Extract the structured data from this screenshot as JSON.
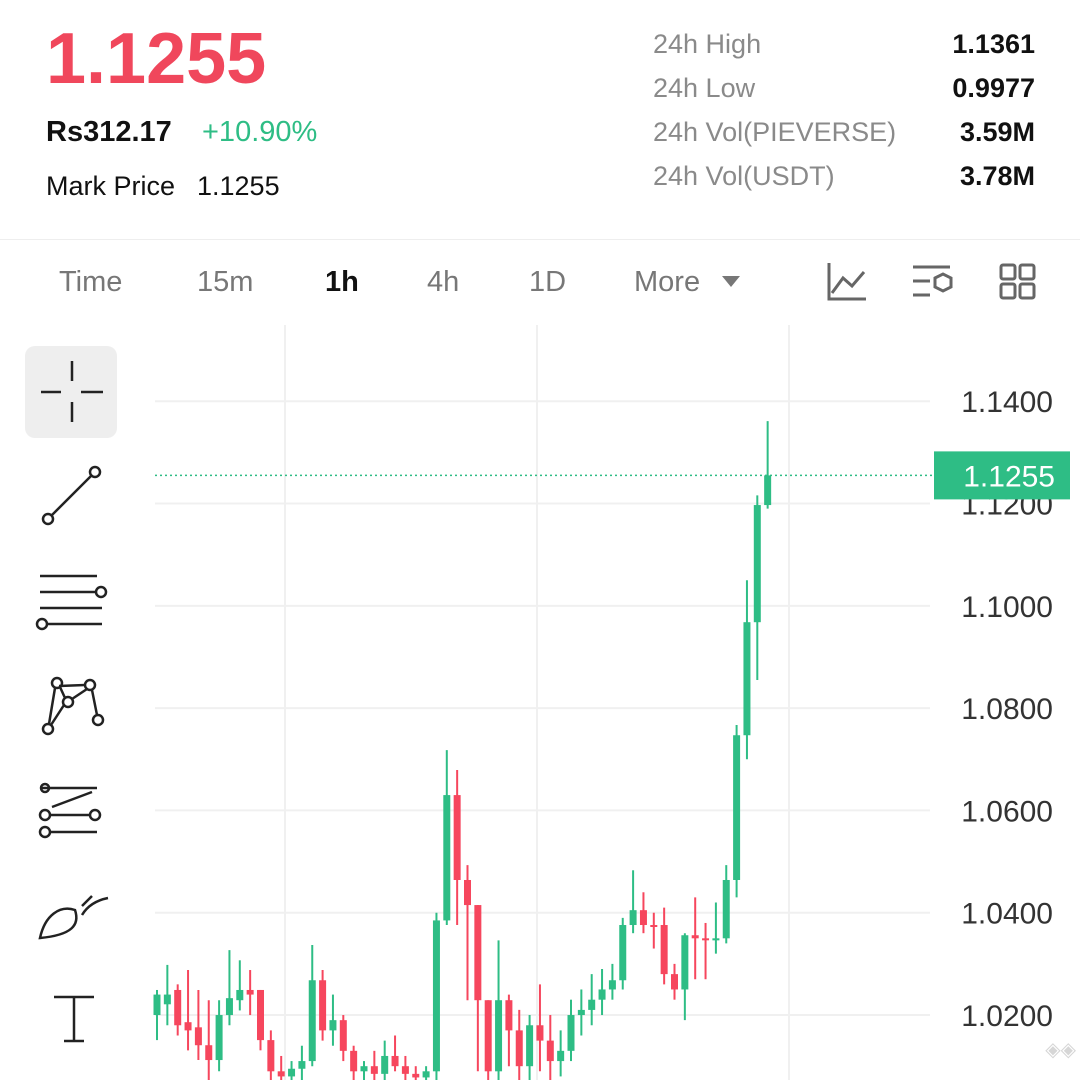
{
  "header": {
    "price": "1.1255",
    "fiat": "Rs312.17",
    "change": "+10.90%",
    "mark_label": "Mark Price",
    "mark_value": "1.1255"
  },
  "stats": [
    {
      "label": "24h High",
      "value": "1.1361"
    },
    {
      "label": "24h Low",
      "value": "0.9977"
    },
    {
      "label": "24h Vol(PIEVERSE)",
      "value": "3.59M"
    },
    {
      "label": "24h Vol(USDT)",
      "value": "3.78M"
    }
  ],
  "tabs": [
    "Time",
    "15m",
    "1h",
    "4h",
    "1D",
    "More"
  ],
  "active_tab": 2,
  "chart_data": {
    "type": "candlestick",
    "up_color": "#2ebd85",
    "down_color": "#f6465d",
    "ylim": [
      1.0073,
      1.1549
    ],
    "yticks": [
      {
        "value": 1.14,
        "label": "1.1400"
      },
      {
        "value": 1.12,
        "label": "1.1200"
      },
      {
        "value": 1.1,
        "label": "1.1000"
      },
      {
        "value": 1.08,
        "label": "1.0800"
      },
      {
        "value": 1.06,
        "label": "1.0600"
      },
      {
        "value": 1.04,
        "label": "1.0400"
      },
      {
        "value": 1.02,
        "label": "1.0200"
      }
    ],
    "grid": true,
    "price_line": {
      "value": 1.1255,
      "label": "1.1255"
    },
    "candles": [
      {
        "o": 1.02,
        "h": 1.0249,
        "l": 1.0151,
        "c": 1.024
      },
      {
        "o": 1.0221,
        "h": 1.0298,
        "l": 1.018,
        "c": 1.024
      },
      {
        "o": 1.0249,
        "h": 1.026,
        "l": 1.016,
        "c": 1.018
      },
      {
        "o": 1.0186,
        "h": 1.0288,
        "l": 1.0131,
        "c": 1.017
      },
      {
        "o": 1.0176,
        "h": 1.0249,
        "l": 1.0112,
        "c": 1.0141
      },
      {
        "o": 1.0141,
        "h": 1.0229,
        "l": 1.0073,
        "c": 1.0112
      },
      {
        "o": 1.0112,
        "h": 1.0229,
        "l": 1.009,
        "c": 1.02
      },
      {
        "o": 1.02,
        "h": 1.0327,
        "l": 1.018,
        "c": 1.0233
      },
      {
        "o": 1.0229,
        "h": 1.0307,
        "l": 1.0209,
        "c": 1.0249
      },
      {
        "o": 1.0249,
        "h": 1.0288,
        "l": 1.02,
        "c": 1.024
      },
      {
        "o": 1.0249,
        "h": 1.0249,
        "l": 1.0131,
        "c": 1.0151
      },
      {
        "o": 1.0151,
        "h": 1.017,
        "l": 1.0073,
        "c": 1.009
      },
      {
        "o": 1.009,
        "h": 1.012,
        "l": 1.0073,
        "c": 1.008
      },
      {
        "o": 1.008,
        "h": 1.011,
        "l": 1.0073,
        "c": 1.0095
      },
      {
        "o": 1.0095,
        "h": 1.014,
        "l": 1.0073,
        "c": 1.011
      },
      {
        "o": 1.011,
        "h": 1.0337,
        "l": 1.01,
        "c": 1.0268
      },
      {
        "o": 1.0268,
        "h": 1.0288,
        "l": 1.015,
        "c": 1.017
      },
      {
        "o": 1.017,
        "h": 1.024,
        "l": 1.014,
        "c": 1.019
      },
      {
        "o": 1.019,
        "h": 1.02,
        "l": 1.011,
        "c": 1.013
      },
      {
        "o": 1.013,
        "h": 1.014,
        "l": 1.0073,
        "c": 1.009
      },
      {
        "o": 1.009,
        "h": 1.011,
        "l": 1.0073,
        "c": 1.01
      },
      {
        "o": 1.01,
        "h": 1.013,
        "l": 1.0073,
        "c": 1.0085
      },
      {
        "o": 1.0085,
        "h": 1.015,
        "l": 1.0073,
        "c": 1.012
      },
      {
        "o": 1.012,
        "h": 1.016,
        "l": 1.009,
        "c": 1.01
      },
      {
        "o": 1.01,
        "h": 1.012,
        "l": 1.0073,
        "c": 1.0085
      },
      {
        "o": 1.0085,
        "h": 1.01,
        "l": 1.0073,
        "c": 1.0078
      },
      {
        "o": 1.0078,
        "h": 1.01,
        "l": 1.0073,
        "c": 1.009
      },
      {
        "o": 1.009,
        "h": 1.04,
        "l": 1.0073,
        "c": 1.0385
      },
      {
        "o": 1.0385,
        "h": 1.0718,
        "l": 1.0376,
        "c": 1.063
      },
      {
        "o": 1.063,
        "h": 1.0679,
        "l": 1.0376,
        "c": 1.0464
      },
      {
        "o": 1.0464,
        "h": 1.0493,
        "l": 1.0229,
        "c": 1.0415
      },
      {
        "o": 1.0415,
        "h": 1.0415,
        "l": 1.009,
        "c": 1.0229
      },
      {
        "o": 1.0229,
        "h": 1.0229,
        "l": 1.0073,
        "c": 1.009
      },
      {
        "o": 1.009,
        "h": 1.0346,
        "l": 1.0073,
        "c": 1.0229
      },
      {
        "o": 1.0229,
        "h": 1.024,
        "l": 1.01,
        "c": 1.017
      },
      {
        "o": 1.017,
        "h": 1.021,
        "l": 1.0073,
        "c": 1.01
      },
      {
        "o": 1.01,
        "h": 1.02,
        "l": 1.0073,
        "c": 1.018
      },
      {
        "o": 1.018,
        "h": 1.026,
        "l": 1.009,
        "c": 1.015
      },
      {
        "o": 1.015,
        "h": 1.02,
        "l": 1.0073,
        "c": 1.011
      },
      {
        "o": 1.011,
        "h": 1.017,
        "l": 1.008,
        "c": 1.013
      },
      {
        "o": 1.013,
        "h": 1.023,
        "l": 1.011,
        "c": 1.02
      },
      {
        "o": 1.02,
        "h": 1.025,
        "l": 1.016,
        "c": 1.021
      },
      {
        "o": 1.021,
        "h": 1.028,
        "l": 1.018,
        "c": 1.023
      },
      {
        "o": 1.023,
        "h": 1.029,
        "l": 1.02,
        "c": 1.025
      },
      {
        "o": 1.025,
        "h": 1.03,
        "l": 1.023,
        "c": 1.0268
      },
      {
        "o": 1.0268,
        "h": 1.039,
        "l": 1.025,
        "c": 1.0376
      },
      {
        "o": 1.0376,
        "h": 1.0483,
        "l": 1.036,
        "c": 1.0405
      },
      {
        "o": 1.0405,
        "h": 1.044,
        "l": 1.036,
        "c": 1.0376
      },
      {
        "o": 1.0376,
        "h": 1.04,
        "l": 1.033,
        "c": 1.0374
      },
      {
        "o": 1.0376,
        "h": 1.041,
        "l": 1.026,
        "c": 1.028
      },
      {
        "o": 1.028,
        "h": 1.03,
        "l": 1.023,
        "c": 1.025
      },
      {
        "o": 1.025,
        "h": 1.036,
        "l": 1.019,
        "c": 1.0356
      },
      {
        "o": 1.0356,
        "h": 1.043,
        "l": 1.027,
        "c": 1.035
      },
      {
        "o": 1.035,
        "h": 1.038,
        "l": 1.027,
        "c": 1.0348
      },
      {
        "o": 1.0346,
        "h": 1.042,
        "l": 1.032,
        "c": 1.035
      },
      {
        "o": 1.035,
        "h": 1.0493,
        "l": 1.034,
        "c": 1.0464
      },
      {
        "o": 1.0464,
        "h": 1.0767,
        "l": 1.043,
        "c": 1.0747
      },
      {
        "o": 1.0747,
        "h": 1.105,
        "l": 1.07,
        "c": 1.0968
      },
      {
        "o": 1.0968,
        "h": 1.1216,
        "l": 1.0855,
        "c": 1.1197
      },
      {
        "o": 1.1197,
        "h": 1.1361,
        "l": 1.119,
        "c": 1.1255
      }
    ]
  }
}
